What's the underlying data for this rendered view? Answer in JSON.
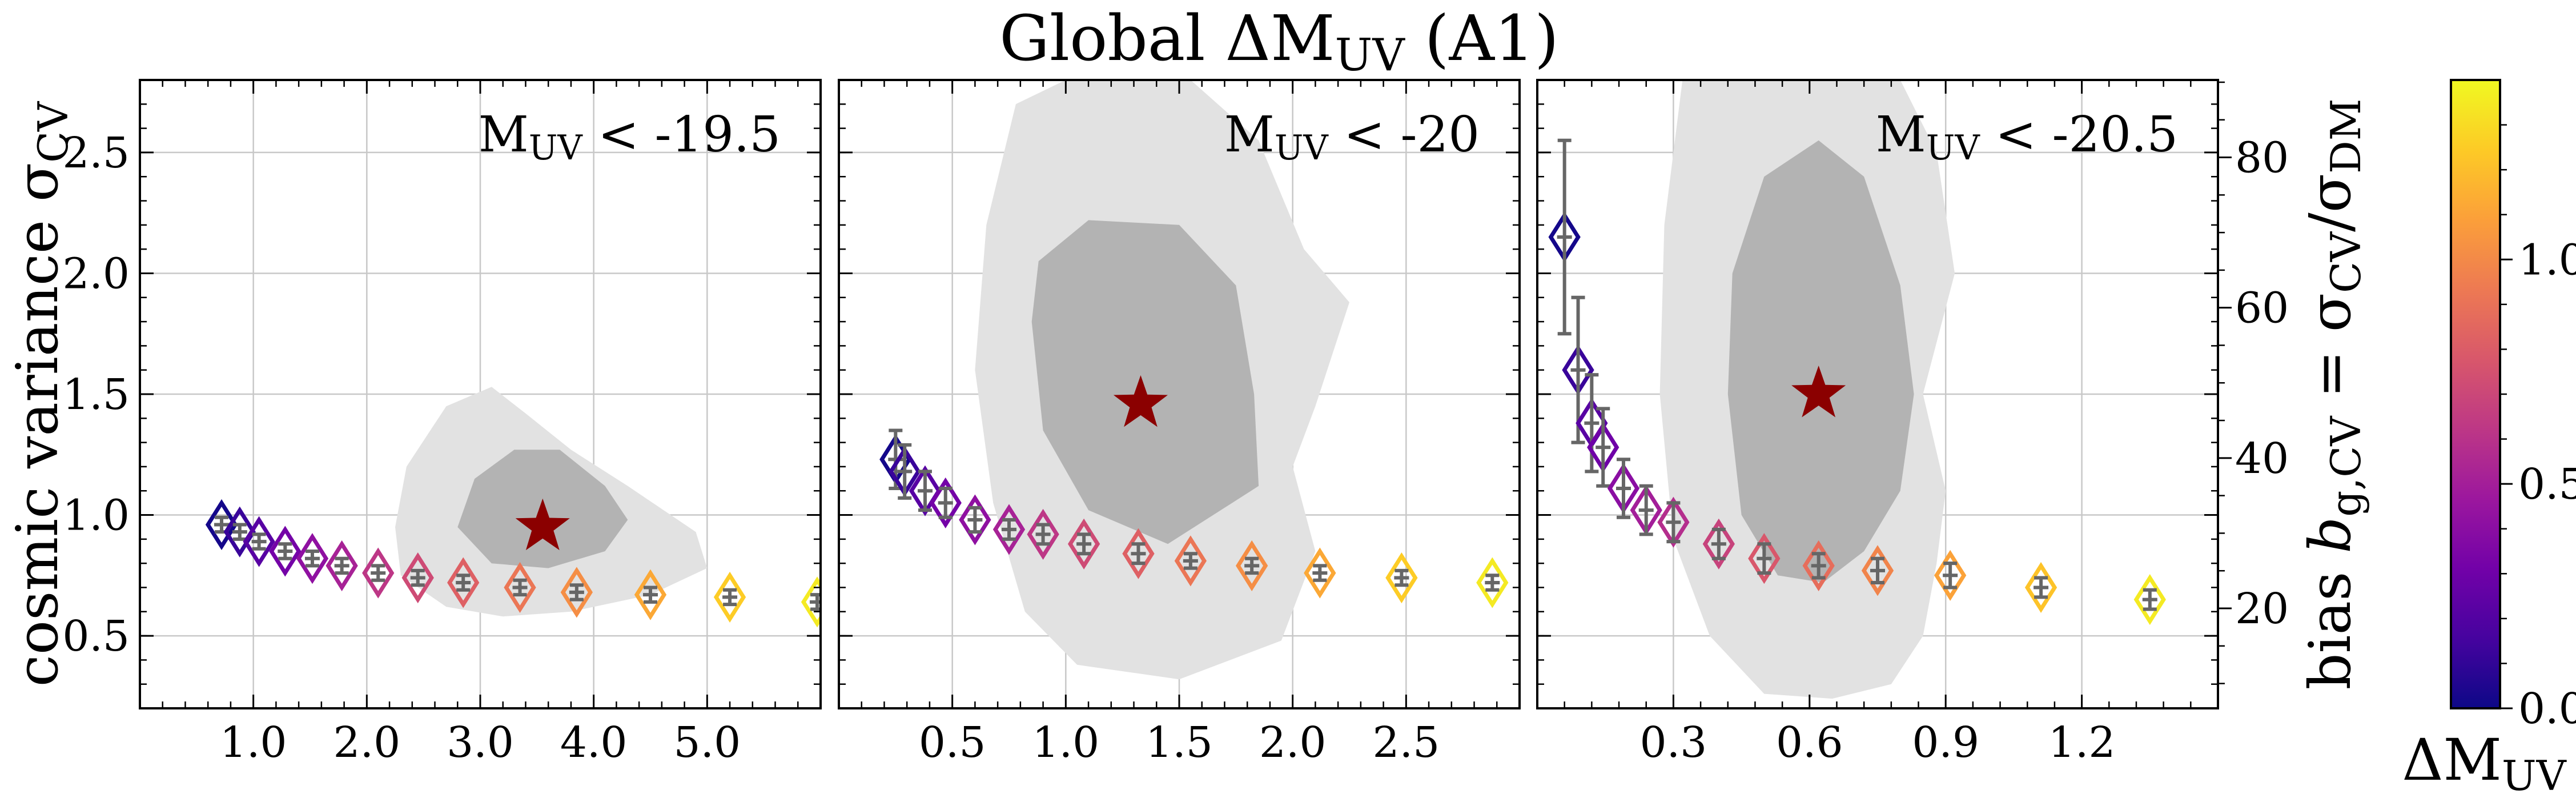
{
  "figure": {
    "title": {
      "main": "Global ΔM",
      "sub": "UV",
      "suffix": " (A1)"
    }
  },
  "colors": {
    "background": "#ffffff",
    "outer_contour": "#e2e2e2",
    "inner_contour": "#b3b3b3",
    "star": "#8b0000",
    "errorbar": "#666666",
    "grid": "#c8c8c8",
    "colormap": [
      "#0d0887",
      "#46039f",
      "#7201a8",
      "#9c179e",
      "#bd3786",
      "#d8576b",
      "#ed7953",
      "#fb9f3a",
      "#fdca26",
      "#f0f921"
    ]
  },
  "y_axis_left": {
    "label": "cosmic variance σ",
    "label_sub": "CV",
    "ylim": [
      0.2,
      2.8
    ],
    "ticks": [
      0.5,
      1.0,
      1.5,
      2.0,
      2.5
    ],
    "tick_labels": [
      "0.5",
      "1.0",
      "1.5",
      "2.0",
      "2.5"
    ]
  },
  "y_axis_right": {
    "label_prefix": "bias ",
    "label_b": "b",
    "label_b_sub": "g,CV",
    "label_eq": " = σ",
    "label_num_sub": "CV",
    "label_slash": "/σ",
    "label_den_sub": "DM",
    "ylim": [
      6.7,
      90.3
    ],
    "ticks": [
      20,
      40,
      60,
      80
    ],
    "tick_labels": [
      "20",
      "40",
      "60",
      "80"
    ]
  },
  "colorbar": {
    "label": "ΔM",
    "label_sub": "UV",
    "range": [
      0.0,
      1.4
    ],
    "ticks": [
      0.0,
      0.5,
      1.0
    ],
    "tick_labels": [
      "0.0",
      "0.5",
      "1.0"
    ]
  },
  "chart_data": [
    {
      "type": "scatter",
      "panel_label": {
        "prefix": "M",
        "sub": "UV",
        "suffix": " < -19.5"
      },
      "xlim": [
        0.0,
        6.0
      ],
      "x_ticks": [
        1.0,
        2.0,
        3.0,
        4.0,
        5.0
      ],
      "x_tick_labels": [
        "1.0",
        "2.0",
        "3.0",
        "4.0",
        "5.0"
      ],
      "best_fit": {
        "x": 3.55,
        "y": 0.95
      },
      "contours": {
        "outer": [
          [
            2.3,
            0.75
          ],
          [
            2.25,
            0.95
          ],
          [
            2.35,
            1.2
          ],
          [
            2.7,
            1.45
          ],
          [
            3.1,
            1.53
          ],
          [
            3.4,
            1.42
          ],
          [
            3.8,
            1.27
          ],
          [
            4.3,
            1.12
          ],
          [
            4.9,
            0.93
          ],
          [
            5.0,
            0.78
          ],
          [
            4.5,
            0.67
          ],
          [
            3.8,
            0.6
          ],
          [
            3.2,
            0.58
          ],
          [
            2.7,
            0.62
          ]
        ],
        "inner": [
          [
            2.8,
            0.95
          ],
          [
            2.95,
            1.15
          ],
          [
            3.3,
            1.27
          ],
          [
            3.7,
            1.27
          ],
          [
            4.1,
            1.12
          ],
          [
            4.3,
            0.98
          ],
          [
            4.1,
            0.85
          ],
          [
            3.6,
            0.78
          ],
          [
            3.1,
            0.8
          ]
        ]
      },
      "points": [
        {
          "x": 0.72,
          "y": 0.96,
          "yerr": 0.03,
          "c": 0.02
        },
        {
          "x": 0.88,
          "y": 0.93,
          "yerr": 0.03,
          "c": 0.12
        },
        {
          "x": 1.05,
          "y": 0.89,
          "yerr": 0.03,
          "c": 0.22
        },
        {
          "x": 1.28,
          "y": 0.85,
          "yerr": 0.03,
          "c": 0.32
        },
        {
          "x": 1.52,
          "y": 0.82,
          "yerr": 0.03,
          "c": 0.42
        },
        {
          "x": 1.78,
          "y": 0.79,
          "yerr": 0.03,
          "c": 0.52
        },
        {
          "x": 2.1,
          "y": 0.76,
          "yerr": 0.03,
          "c": 0.62
        },
        {
          "x": 2.45,
          "y": 0.74,
          "yerr": 0.03,
          "c": 0.72
        },
        {
          "x": 2.85,
          "y": 0.72,
          "yerr": 0.03,
          "c": 0.82
        },
        {
          "x": 3.35,
          "y": 0.7,
          "yerr": 0.03,
          "c": 0.92
        },
        {
          "x": 3.85,
          "y": 0.68,
          "yerr": 0.03,
          "c": 1.02
        },
        {
          "x": 4.5,
          "y": 0.67,
          "yerr": 0.03,
          "c": 1.12
        },
        {
          "x": 5.2,
          "y": 0.66,
          "yerr": 0.03,
          "c": 1.25
        },
        {
          "x": 5.97,
          "y": 0.64,
          "yerr": 0.03,
          "c": 1.35
        }
      ]
    },
    {
      "type": "scatter",
      "panel_label": {
        "prefix": "M",
        "sub": "UV",
        "suffix": " < -20"
      },
      "xlim": [
        0.0,
        3.0
      ],
      "x_ticks": [
        0.5,
        1.0,
        1.5,
        2.0,
        2.5
      ],
      "x_tick_labels": [
        "0.5",
        "1.0",
        "1.5",
        "2.0",
        "2.5"
      ],
      "best_fit": {
        "x": 1.33,
        "y": 1.46
      },
      "contours": {
        "outer": [
          [
            0.78,
            2.7
          ],
          [
            0.65,
            2.2
          ],
          [
            0.6,
            1.6
          ],
          [
            0.68,
            1.05
          ],
          [
            0.82,
            0.6
          ],
          [
            1.05,
            0.38
          ],
          [
            1.5,
            0.32
          ],
          [
            1.95,
            0.48
          ],
          [
            2.1,
            0.85
          ],
          [
            2.0,
            1.2
          ],
          [
            2.1,
            1.45
          ],
          [
            2.25,
            1.88
          ],
          [
            2.05,
            2.1
          ],
          [
            1.85,
            2.55
          ],
          [
            1.55,
            2.8
          ],
          [
            1.0,
            2.8
          ]
        ],
        "inner": [
          [
            0.85,
            1.8
          ],
          [
            0.9,
            1.35
          ],
          [
            1.1,
            1.02
          ],
          [
            1.45,
            0.88
          ],
          [
            1.85,
            1.12
          ],
          [
            1.83,
            1.5
          ],
          [
            1.75,
            1.95
          ],
          [
            1.5,
            2.2
          ],
          [
            1.1,
            2.22
          ],
          [
            0.88,
            2.05
          ]
        ]
      },
      "points": [
        {
          "x": 0.25,
          "y": 1.23,
          "yerr": 0.12,
          "c": 0.02
        },
        {
          "x": 0.29,
          "y": 1.18,
          "yerr": 0.11,
          "c": 0.12
        },
        {
          "x": 0.38,
          "y": 1.1,
          "yerr": 0.08,
          "c": 0.22
        },
        {
          "x": 0.47,
          "y": 1.05,
          "yerr": 0.06,
          "c": 0.32
        },
        {
          "x": 0.6,
          "y": 0.98,
          "yerr": 0.05,
          "c": 0.42
        },
        {
          "x": 0.75,
          "y": 0.94,
          "yerr": 0.04,
          "c": 0.52
        },
        {
          "x": 0.9,
          "y": 0.92,
          "yerr": 0.04,
          "c": 0.62
        },
        {
          "x": 1.08,
          "y": 0.88,
          "yerr": 0.04,
          "c": 0.72
        },
        {
          "x": 1.32,
          "y": 0.84,
          "yerr": 0.04,
          "c": 0.82
        },
        {
          "x": 1.55,
          "y": 0.81,
          "yerr": 0.03,
          "c": 0.92
        },
        {
          "x": 1.82,
          "y": 0.79,
          "yerr": 0.03,
          "c": 1.02
        },
        {
          "x": 2.12,
          "y": 0.76,
          "yerr": 0.03,
          "c": 1.12
        },
        {
          "x": 2.48,
          "y": 0.74,
          "yerr": 0.03,
          "c": 1.25
        },
        {
          "x": 2.88,
          "y": 0.72,
          "yerr": 0.03,
          "c": 1.35
        }
      ]
    },
    {
      "type": "scatter",
      "panel_label": {
        "prefix": "M",
        "sub": "UV",
        "suffix": " < -20.5"
      },
      "xlim": [
        0.0,
        1.5
      ],
      "x_ticks": [
        0.3,
        0.6,
        0.9,
        1.2
      ],
      "x_tick_labels": [
        "0.3",
        "0.6",
        "0.9",
        "1.2"
      ],
      "best_fit": {
        "x": 0.62,
        "y": 1.5
      },
      "contours": {
        "outer": [
          [
            0.32,
            2.8
          ],
          [
            0.28,
            2.2
          ],
          [
            0.27,
            1.5
          ],
          [
            0.3,
            0.9
          ],
          [
            0.38,
            0.5
          ],
          [
            0.5,
            0.26
          ],
          [
            0.65,
            0.24
          ],
          [
            0.78,
            0.3
          ],
          [
            0.85,
            0.5
          ],
          [
            0.88,
            0.8
          ],
          [
            0.9,
            1.1
          ],
          [
            0.85,
            1.5
          ],
          [
            0.92,
            2.0
          ],
          [
            0.88,
            2.5
          ],
          [
            0.8,
            2.8
          ]
        ],
        "inner": [
          [
            0.43,
            2.0
          ],
          [
            0.42,
            1.5
          ],
          [
            0.45,
            1.0
          ],
          [
            0.53,
            0.75
          ],
          [
            0.63,
            0.72
          ],
          [
            0.72,
            0.85
          ],
          [
            0.8,
            1.1
          ],
          [
            0.83,
            1.5
          ],
          [
            0.8,
            1.95
          ],
          [
            0.72,
            2.4
          ],
          [
            0.62,
            2.55
          ],
          [
            0.5,
            2.4
          ]
        ]
      },
      "points": [
        {
          "x": 0.06,
          "y": 2.15,
          "yerr": 0.4,
          "c": 0.02
        },
        {
          "x": 0.09,
          "y": 1.6,
          "yerr": 0.3,
          "c": 0.12
        },
        {
          "x": 0.12,
          "y": 1.38,
          "yerr": 0.2,
          "c": 0.22
        },
        {
          "x": 0.145,
          "y": 1.28,
          "yerr": 0.16,
          "c": 0.3
        },
        {
          "x": 0.19,
          "y": 1.11,
          "yerr": 0.12,
          "c": 0.4
        },
        {
          "x": 0.24,
          "y": 1.02,
          "yerr": 0.1,
          "c": 0.5
        },
        {
          "x": 0.3,
          "y": 0.97,
          "yerr": 0.08,
          "c": 0.58
        },
        {
          "x": 0.4,
          "y": 0.88,
          "yerr": 0.06,
          "c": 0.68
        },
        {
          "x": 0.5,
          "y": 0.82,
          "yerr": 0.06,
          "c": 0.78
        },
        {
          "x": 0.62,
          "y": 0.79,
          "yerr": 0.05,
          "c": 0.88
        },
        {
          "x": 0.75,
          "y": 0.77,
          "yerr": 0.05,
          "c": 0.98
        },
        {
          "x": 0.91,
          "y": 0.75,
          "yerr": 0.05,
          "c": 1.1
        },
        {
          "x": 1.11,
          "y": 0.7,
          "yerr": 0.04,
          "c": 1.22
        },
        {
          "x": 1.35,
          "y": 0.65,
          "yerr": 0.04,
          "c": 1.35
        }
      ]
    }
  ]
}
